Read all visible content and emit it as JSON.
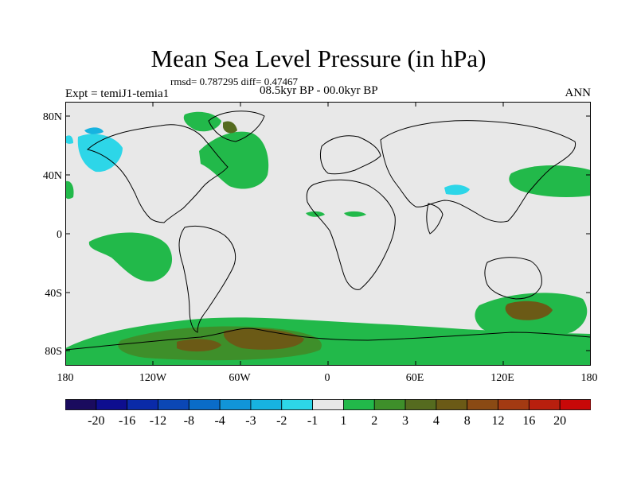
{
  "title": "Mean Sea Level Pressure (in hPa)",
  "stats": "rmsd= 0.787295 diff= 0.47467",
  "expt": "Expt = temiJ1-temia1",
  "period": "08.5kyr BP - 00.0kyr BP",
  "season": "ANN",
  "lat_labels": [
    "80N",
    "40N",
    "0",
    "40S",
    "80S"
  ],
  "lon_labels": [
    "180",
    "120W",
    "60W",
    "0",
    "60E",
    "120E",
    "180"
  ],
  "colorbar": {
    "labels": [
      "-20",
      "-16",
      "-12",
      "-8",
      "-4",
      "-3",
      "-2",
      "-1",
      "1",
      "2",
      "3",
      "4",
      "8",
      "12",
      "16",
      "20"
    ],
    "colors": [
      "#1a0b5e",
      "#0e0e8f",
      "#0a2aa8",
      "#0b47b5",
      "#0a6cc8",
      "#1195d8",
      "#17b3e0",
      "#2dd6e8",
      "#e8e8e8",
      "#22b94a",
      "#3e8f2a",
      "#556b1f",
      "#6b5a16",
      "#8a4a14",
      "#a33a12",
      "#b81f0e",
      "#c80808"
    ]
  },
  "colors": {
    "background": "#e8e8e8",
    "positive_small": "#22b94a",
    "positive_mid": "#556b1f",
    "positive_high": "#8a4a14",
    "negative_small": "#2dd6e8",
    "coast": "#000000"
  }
}
